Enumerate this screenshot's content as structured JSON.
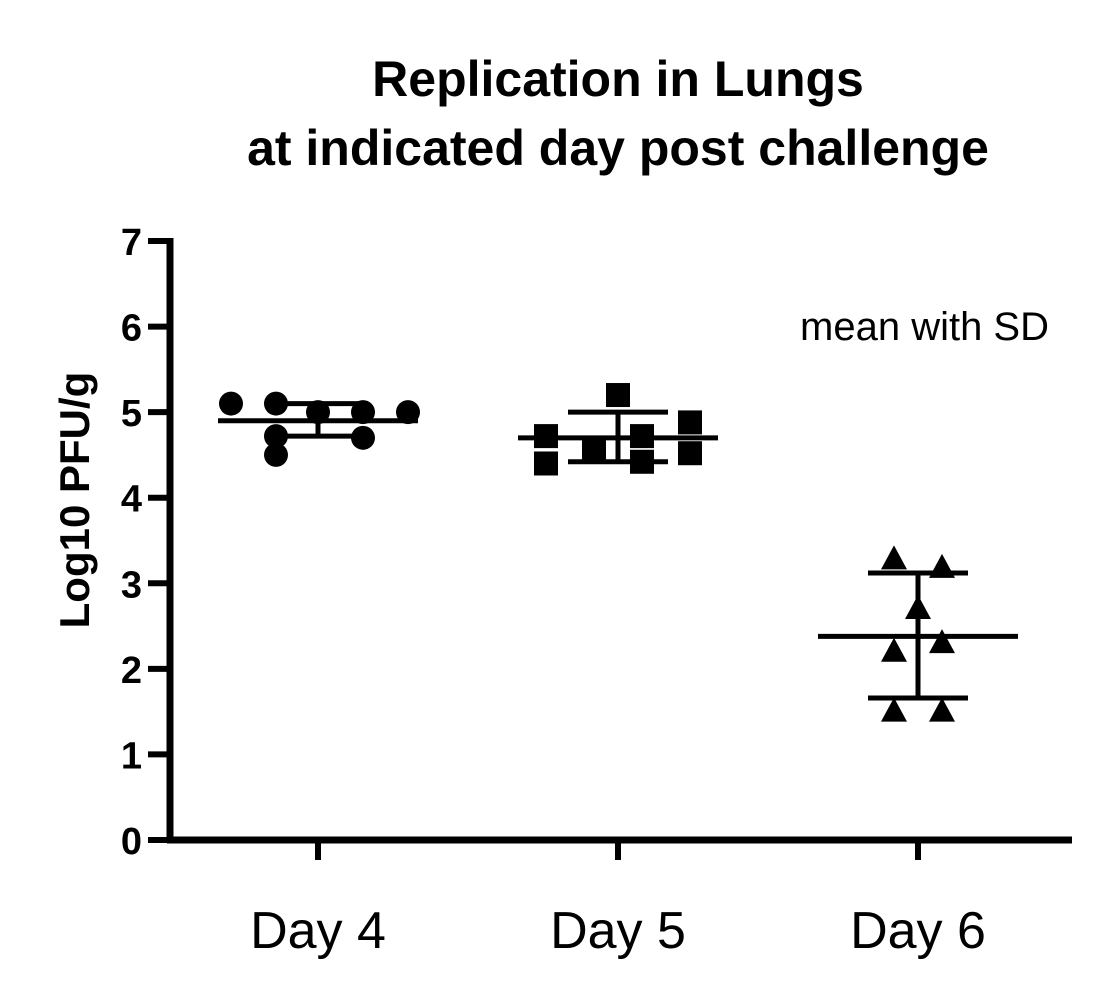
{
  "chart_data": {
    "type": "scatter",
    "title": [
      "Replication in Lungs",
      "at indicated day post challenge"
    ],
    "ylabel": "Log10 PFU/g",
    "xlabel": "",
    "ylim": [
      0,
      7
    ],
    "yticks": [
      0,
      1,
      2,
      3,
      4,
      5,
      6,
      7
    ],
    "categories": [
      "Day 4",
      "Day 5",
      "Day 6"
    ],
    "annotation": "mean with SD",
    "color": "#000000",
    "series": [
      {
        "category": "Day 4",
        "marker": "circle",
        "points": [
          {
            "offset": -0.29,
            "y": 5.1
          },
          {
            "offset": -0.14,
            "y": 5.1
          },
          {
            "offset": -0.14,
            "y": 4.72
          },
          {
            "offset": -0.14,
            "y": 4.5
          },
          {
            "offset": 0.0,
            "y": 5.0
          },
          {
            "offset": 0.15,
            "y": 5.0
          },
          {
            "offset": 0.15,
            "y": 4.7
          },
          {
            "offset": 0.3,
            "y": 5.0
          }
        ],
        "mean": 4.9,
        "sd_upper": 5.1,
        "sd_lower": 4.72
      },
      {
        "category": "Day 5",
        "marker": "square",
        "points": [
          {
            "offset": -0.24,
            "y": 4.72
          },
          {
            "offset": -0.24,
            "y": 4.4
          },
          {
            "offset": -0.08,
            "y": 4.55
          },
          {
            "offset": 0.0,
            "y": 5.2
          },
          {
            "offset": 0.08,
            "y": 4.72
          },
          {
            "offset": 0.08,
            "y": 4.42
          },
          {
            "offset": 0.24,
            "y": 4.88
          },
          {
            "offset": 0.24,
            "y": 4.52
          }
        ],
        "mean": 4.7,
        "sd_upper": 5.0,
        "sd_lower": 4.42
      },
      {
        "category": "Day 6",
        "marker": "triangle",
        "points": [
          {
            "offset": -0.08,
            "y": 3.28
          },
          {
            "offset": 0.08,
            "y": 3.18
          },
          {
            "offset": 0.0,
            "y": 2.7
          },
          {
            "offset": -0.08,
            "y": 2.2
          },
          {
            "offset": 0.08,
            "y": 2.3
          },
          {
            "offset": -0.08,
            "y": 1.5
          },
          {
            "offset": 0.08,
            "y": 1.5
          }
        ],
        "mean": 2.38,
        "sd_upper": 3.12,
        "sd_lower": 1.66
      }
    ]
  }
}
